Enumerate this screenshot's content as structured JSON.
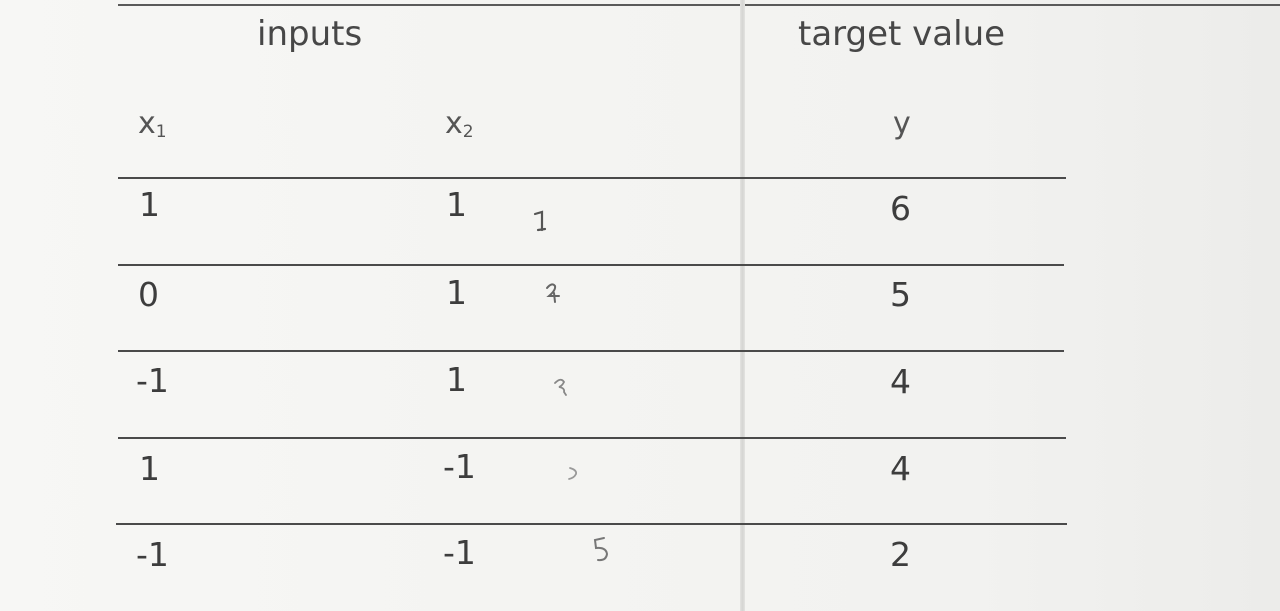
{
  "table": {
    "group_headers": {
      "inputs": "inputs",
      "target": "target value"
    },
    "column_headers": {
      "x1": "x",
      "x1_sub": "1",
      "x2": "x",
      "x2_sub": "2",
      "y": "y"
    },
    "rows": [
      {
        "x1": "1",
        "x2": "1",
        "y": "6"
      },
      {
        "x1": "0",
        "x2": "1",
        "y": "5"
      },
      {
        "x1": "-1",
        "x2": "1",
        "y": "4"
      },
      {
        "x1": "1",
        "x2": "-1",
        "y": "4"
      },
      {
        "x1": "-1",
        "x2": "-1",
        "y": "2"
      }
    ]
  },
  "handwritten_marks": [
    "1",
    "2",
    "3",
    "4",
    "5"
  ]
}
